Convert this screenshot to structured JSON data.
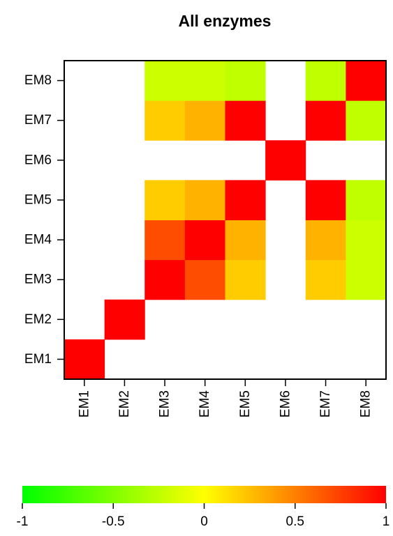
{
  "chart_data": {
    "type": "heatmap",
    "title": "All enzymes",
    "xlabel": "",
    "ylabel": "",
    "x_categories": [
      "EM1",
      "EM2",
      "EM3",
      "EM4",
      "EM5",
      "EM6",
      "EM7",
      "EM8"
    ],
    "y_categories": [
      "EM1",
      "EM2",
      "EM3",
      "EM4",
      "EM5",
      "EM6",
      "EM7",
      "EM8"
    ],
    "values": [
      [
        1,
        null,
        null,
        null,
        null,
        null,
        null,
        null
      ],
      [
        null,
        1,
        null,
        null,
        null,
        null,
        null,
        null
      ],
      [
        null,
        null,
        1,
        0.7,
        0.2,
        null,
        0.2,
        -0.2
      ],
      [
        null,
        null,
        0.7,
        1,
        0.3,
        null,
        0.3,
        -0.2
      ],
      [
        null,
        null,
        0.2,
        0.3,
        1,
        null,
        1,
        -0.25
      ],
      [
        null,
        null,
        null,
        null,
        null,
        1,
        null,
        null
      ],
      [
        null,
        null,
        0.2,
        0.3,
        1,
        null,
        1,
        -0.25
      ],
      [
        null,
        null,
        -0.2,
        -0.2,
        -0.25,
        null,
        -0.25,
        1
      ]
    ],
    "value_note": "values[i][j] = cell at x_categories[i], y_categories[j]; null = blank (no value shown)",
    "color_scale": {
      "min": -1,
      "max": 1,
      "colors": [
        "#00ff00",
        "#ffff00",
        "#ff0000"
      ],
      "ticks": [
        -1,
        -0.5,
        0,
        0.5,
        1
      ],
      "tick_labels": [
        "-1",
        "-0.5",
        "0",
        "0.5",
        "1"
      ]
    },
    "legend": "bottom",
    "grid": false
  }
}
